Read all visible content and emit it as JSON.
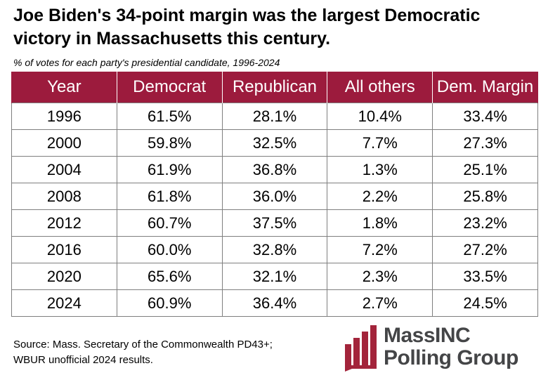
{
  "title": "Joe Biden's 34-point margin was the largest Democratic victory in Massachusetts this century.",
  "subtitle": "% of votes for each party's presidential candidate, 1996-2024",
  "chart_data": {
    "type": "table",
    "title": "Joe Biden's 34-point margin was the largest Democratic victory in Massachusetts this century.",
    "subtitle": "% of votes for each party's presidential candidate, 1996-2024",
    "columns": [
      "Year",
      "Democrat",
      "Republican",
      "All others",
      "Dem. Margin"
    ],
    "rows": [
      [
        "1996",
        "61.5%",
        "28.1%",
        "10.4%",
        "33.4%"
      ],
      [
        "2000",
        "59.8%",
        "32.5%",
        "7.7%",
        "27.3%"
      ],
      [
        "2004",
        "61.9%",
        "36.8%",
        "1.3%",
        "25.1%"
      ],
      [
        "2008",
        "61.8%",
        "36.0%",
        "2.2%",
        "25.8%"
      ],
      [
        "2012",
        "60.7%",
        "37.5%",
        "1.8%",
        "23.2%"
      ],
      [
        "2016",
        "60.0%",
        "32.8%",
        "7.2%",
        "27.2%"
      ],
      [
        "2020",
        "65.6%",
        "32.1%",
        "2.3%",
        "33.5%"
      ],
      [
        "2024",
        "60.9%",
        "36.4%",
        "2.7%",
        "24.5%"
      ]
    ]
  },
  "source": {
    "line1": "Source: Mass. Secretary of the Commonwealth PD43+;",
    "line2": "WBUR unofficial 2024 results."
  },
  "logo": {
    "line1": "MassINC",
    "line2": "Polling Group",
    "icon": "bar-chart-logo-icon"
  },
  "colors": {
    "header_bg": "#9c1b3d",
    "header_text": "#ffffff",
    "border": "#7f7f7f",
    "logo_red": "#a3243b",
    "logo_text": "#444547"
  }
}
